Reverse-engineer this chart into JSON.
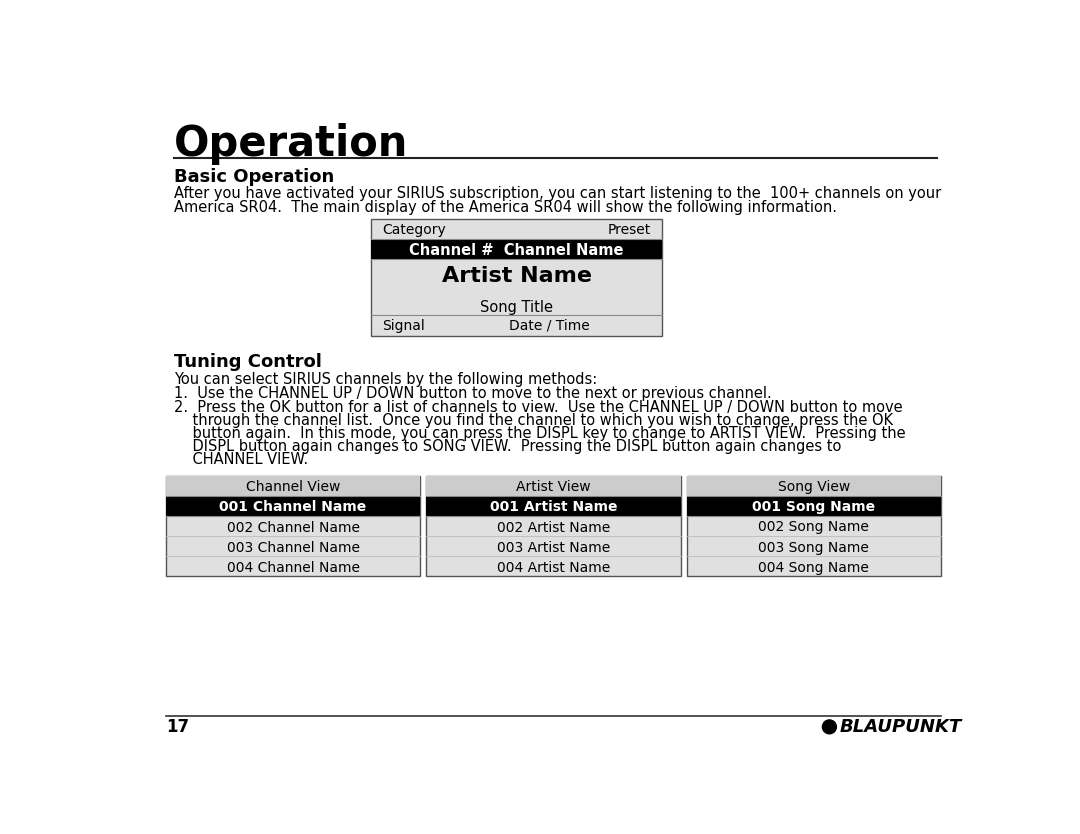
{
  "title": "Operation",
  "section1": "Basic Operation",
  "body1_line1": "After you have activated your SIRIUS subscription, you can start listening to the  100+ channels on your",
  "body1_line2": "America SR04.  The main display of the America SR04 will show the following information.",
  "display_box": {
    "row1_left": "Category",
    "row1_right": "Preset",
    "row2_left": "Channel #  Channel Name",
    "row3": "Artist Name",
    "row4": "Song Title",
    "row5_left": "Signal",
    "row5_right": "Date / Time"
  },
  "section2": "Tuning Control",
  "body2_intro": "You can select SIRIUS channels by the following methods:",
  "body2_item1": "1.  Use the CHANNEL UP / DOWN button to move to the next or previous channel.",
  "body2_item2_lines": [
    "2.  Press the OK button for a list of channels to view.  Use the CHANNEL UP / DOWN button to move",
    "    through the channel list.  Once you find the channel to which you wish to change, press the OK",
    "    button again.  In this mode, you can press the DISPL key to change to ARTIST VIEW.  Pressing the",
    "    DISPL button again changes to SONG VIEW.  Pressing the DISPL button again changes to",
    "    CHANNEL VIEW."
  ],
  "table_headers": [
    "Channel View",
    "Artist View",
    "Song View"
  ],
  "table_highlight": [
    "001 Channel Name",
    "001 Artist Name",
    "001 Song Name"
  ],
  "table_rows": [
    [
      "002 Channel Name",
      "002 Artist Name",
      "002 Song Name"
    ],
    [
      "003 Channel Name",
      "003 Artist Name",
      "003 Song Name"
    ],
    [
      "004 Channel Name",
      "004 Artist Name",
      "004 Song Name"
    ]
  ],
  "page_number": "17",
  "bg_color": "#ffffff",
  "text_color": "#000000",
  "box_bg": "#e0e0e0",
  "header_bg": "#c8c8c8",
  "highlight_bg": "#000000",
  "highlight_fg": "#ffffff",
  "border_color": "#555555"
}
